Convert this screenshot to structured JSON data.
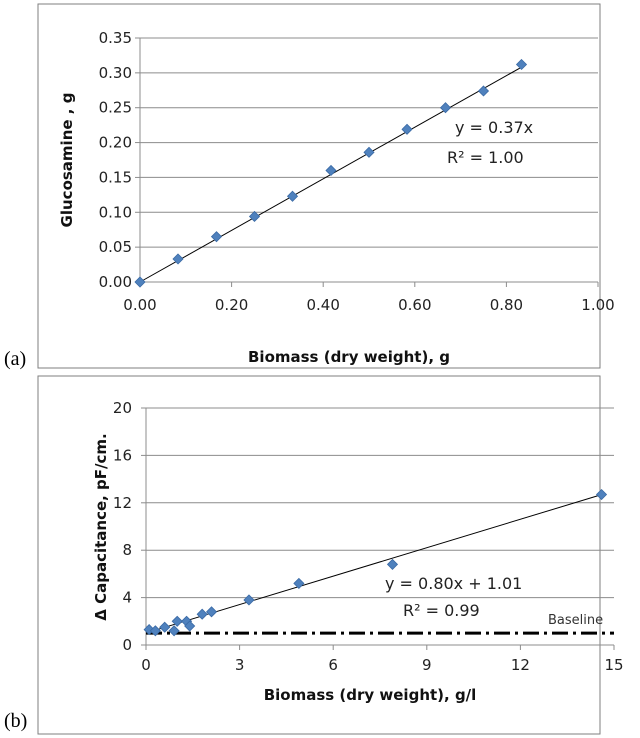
{
  "panels": [
    {
      "label": "(a)"
    },
    {
      "label": "(b)"
    }
  ],
  "colors": {
    "marker": "#4f81bd",
    "marker_edge": "#3a6aa5",
    "grid": "#8c8c8c",
    "line": "#000000",
    "frame": "#7f7f7f"
  },
  "chart_data": [
    {
      "type": "scatter",
      "xlabel": "Biomass (dry weight), g",
      "ylabel": "Glucosamine , g",
      "xlim": [
        0,
        1
      ],
      "ylim": [
        0,
        0.35
      ],
      "x_ticks": [
        "0.00",
        "0.20",
        "0.40",
        "0.60",
        "0.80",
        "1.00"
      ],
      "y_ticks": [
        "0.00",
        "0.05",
        "0.10",
        "0.15",
        "0.20",
        "0.25",
        "0.30",
        "0.35"
      ],
      "grid": "horizontal",
      "series": [
        {
          "x": [
            0,
            0.083,
            0.167,
            0.25,
            0.333,
            0.417,
            0.5,
            0.583,
            0.667,
            0.75,
            0.833
          ],
          "y": [
            0.0,
            0.033,
            0.065,
            0.094,
            0.123,
            0.16,
            0.186,
            0.219,
            0.25,
            0.274,
            0.312
          ]
        }
      ],
      "trendline": {
        "slope": 0.37,
        "intercept": 0
      },
      "annotations": [
        "y = 0.37x",
        "R² = 1.00"
      ]
    },
    {
      "type": "scatter",
      "xlabel": "Biomass (dry weight), g/l",
      "ylabel": "Δ Capacitance, pF/cm.",
      "xlim": [
        0,
        15
      ],
      "ylim": [
        0,
        20
      ],
      "x_ticks": [
        "0",
        "3",
        "6",
        "9",
        "12",
        "15"
      ],
      "y_ticks": [
        "0",
        "4",
        "8",
        "12",
        "16",
        "20"
      ],
      "grid": "horizontal",
      "series": [
        {
          "x": [
            0.1,
            0.3,
            0.6,
            0.9,
            1.0,
            1.3,
            1.4,
            1.8,
            2.1,
            3.3,
            4.9,
            7.9,
            14.6
          ],
          "y": [
            1.3,
            1.2,
            1.5,
            1.2,
            2.0,
            2.0,
            1.6,
            2.6,
            2.8,
            3.8,
            5.2,
            6.8,
            12.7
          ]
        }
      ],
      "trendline": {
        "slope": 0.8,
        "intercept": 1.01
      },
      "baseline": {
        "y": 1.0,
        "label": "Baseline"
      },
      "annotations": [
        "y = 0.80x + 1.01",
        "R² = 0.99"
      ]
    }
  ]
}
